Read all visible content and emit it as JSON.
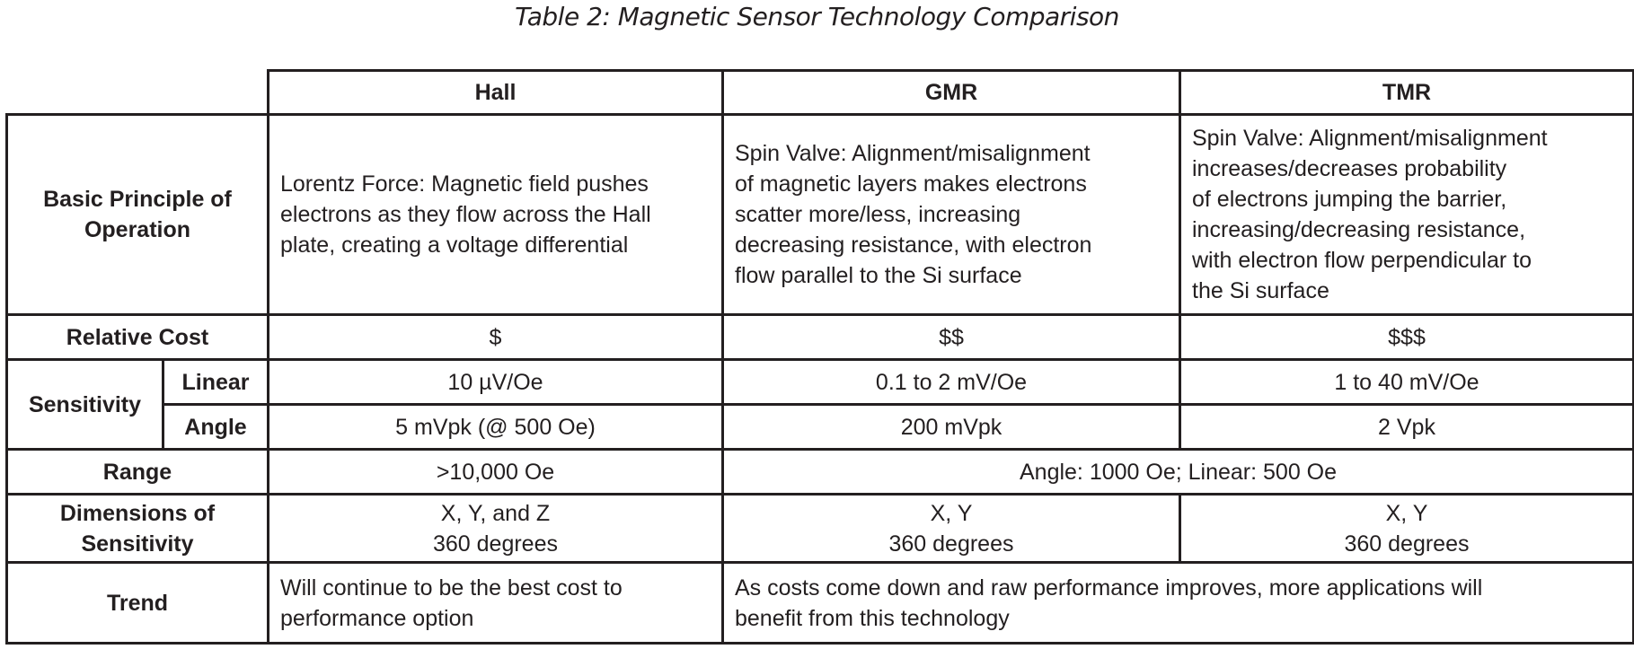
{
  "title": "Table 2: Magnetic Sensor Technology Comparison",
  "columns": [
    "Hall",
    "GMR",
    "TMR"
  ],
  "rows": {
    "principle": {
      "label": "Basic Principle of Operation",
      "hall": "Lorentz Force: Magnetic field pushes\nelectrons as they flow across the Hall\nplate, creating a voltage differential",
      "gmr": "Spin Valve: Alignment/misalignment\nof magnetic layers makes electrons\nscatter more/less, increasing\ndecreasing resistance, with electron\nflow parallel to the Si surface",
      "tmr": "Spin Valve: Alignment/misalignment\nincreases/decreases probability\nof electrons jumping the barrier,\nincreasing/decreasing resistance,\nwith electron flow perpendicular to\nthe Si surface"
    },
    "cost": {
      "label": "Relative Cost",
      "hall": "$",
      "gmr": "$$",
      "tmr": "$$$"
    },
    "sensitivity": {
      "label": "Sensitivity",
      "linear": {
        "label": "Linear",
        "hall": "10 µV/Oe",
        "gmr": "0.1 to 2 mV/Oe",
        "tmr": "1 to 40 mV/Oe"
      },
      "angle": {
        "label": "Angle",
        "hall": "5 mVpk (@ 500 Oe)",
        "gmr": "200 mVpk",
        "tmr": "2 Vpk"
      }
    },
    "range": {
      "label": "Range",
      "hall": ">10,000 Oe",
      "gmr_tmr": "Angle: 1000 Oe; Linear: 500 Oe"
    },
    "dimensions": {
      "label": "Dimensions of Sensitivity",
      "hall": "X, Y, and Z\n360 degrees",
      "gmr": "X, Y\n360 degrees",
      "tmr": "X, Y\n360 degrees"
    },
    "trend": {
      "label": "Trend",
      "hall": "Will continue to be the best cost to\nperformance option",
      "gmr_tmr": "As costs come down and raw performance improves, more applications will\nbenefit from this technology"
    }
  }
}
